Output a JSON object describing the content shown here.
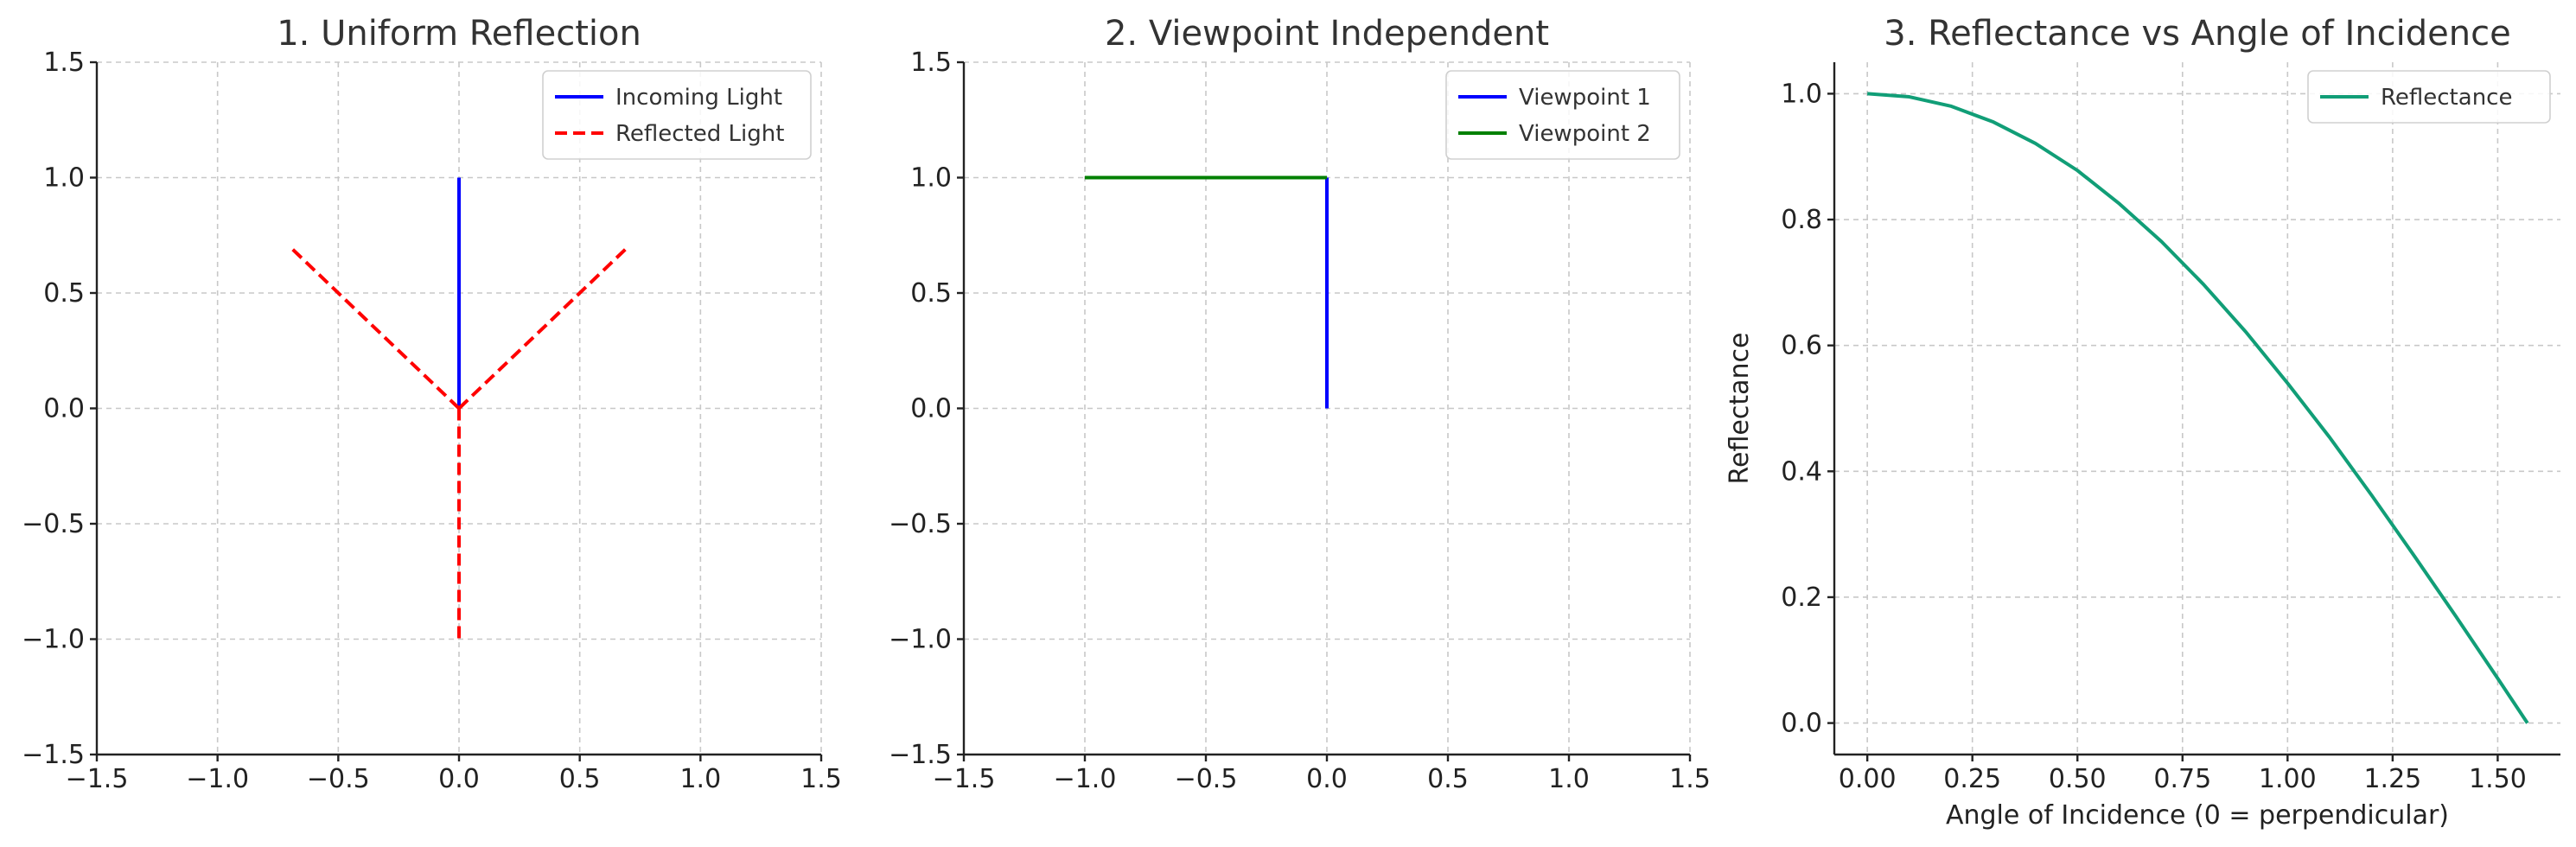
{
  "chart_data": [
    {
      "type": "line",
      "title": "1. Uniform Reflection",
      "xlabel": "",
      "ylabel": "",
      "xlim": [
        -1.5,
        1.5
      ],
      "ylim": [
        -1.5,
        1.5
      ],
      "xticks": [
        -1.5,
        -1.0,
        -0.5,
        0.0,
        0.5,
        1.0,
        1.5
      ],
      "yticks": [
        -1.5,
        -1.0,
        -0.5,
        0.0,
        0.5,
        1.0,
        1.5
      ],
      "xtick_labels": [
        "−1.5",
        "−1.0",
        "−0.5",
        "0.0",
        "0.5",
        "1.0",
        "1.5"
      ],
      "ytick_labels": [
        "−1.5",
        "−1.0",
        "−0.5",
        "0.0",
        "0.5",
        "1.0",
        "1.5"
      ],
      "grid": true,
      "legend": "top-right",
      "series": [
        {
          "name": "Incoming Light",
          "color": "#0000ff",
          "dash": "solid",
          "segments": [
            [
              [
                0,
                1.0
              ],
              [
                0,
                0
              ]
            ]
          ]
        },
        {
          "name": "Reflected Light",
          "color": "#ff0000",
          "dash": "dashed",
          "segments": [
            [
              [
                0,
                0
              ],
              [
                0.7,
                0.7
              ]
            ],
            [
              [
                0,
                0
              ],
              [
                -0.7,
                0.7
              ]
            ],
            [
              [
                0,
                0
              ],
              [
                0,
                -1.0
              ]
            ]
          ]
        }
      ]
    },
    {
      "type": "line",
      "title": "2. Viewpoint Independent",
      "xlabel": "",
      "ylabel": "",
      "xlim": [
        -1.5,
        1.5
      ],
      "ylim": [
        -1.5,
        1.5
      ],
      "xticks": [
        -1.5,
        -1.0,
        -0.5,
        0.0,
        0.5,
        1.0,
        1.5
      ],
      "yticks": [
        -1.5,
        -1.0,
        -0.5,
        0.0,
        0.5,
        1.0,
        1.5
      ],
      "xtick_labels": [
        "−1.5",
        "−1.0",
        "−0.5",
        "0.0",
        "0.5",
        "1.0",
        "1.5"
      ],
      "ytick_labels": [
        "−1.5",
        "−1.0",
        "−0.5",
        "0.0",
        "0.5",
        "1.0",
        "1.5"
      ],
      "grid": true,
      "legend": "top-right",
      "series": [
        {
          "name": "Viewpoint 1",
          "color": "#0000ff",
          "dash": "solid",
          "segments": [
            [
              [
                0,
                0
              ],
              [
                0,
                1.0
              ]
            ]
          ]
        },
        {
          "name": "Viewpoint 2",
          "color": "#008000",
          "dash": "solid",
          "segments": [
            [
              [
                0,
                1.0
              ],
              [
                -1.0,
                1.0
              ]
            ]
          ]
        }
      ]
    },
    {
      "type": "line",
      "title": "3. Reflectance vs Angle of Incidence",
      "xlabel": "Angle of Incidence (0 = perpendicular)",
      "ylabel": "Reflectance",
      "xlim": [
        -0.0785,
        1.6493
      ],
      "ylim": [
        -0.05,
        1.05
      ],
      "xticks": [
        0.0,
        0.25,
        0.5,
        0.75,
        1.0,
        1.25,
        1.5
      ],
      "yticks": [
        0.0,
        0.2,
        0.4,
        0.6,
        0.8,
        1.0
      ],
      "xtick_labels": [
        "0.00",
        "0.25",
        "0.50",
        "0.75",
        "1.00",
        "1.25",
        "1.50"
      ],
      "ytick_labels": [
        "0.0",
        "0.2",
        "0.4",
        "0.6",
        "0.8",
        "1.0"
      ],
      "grid": true,
      "legend": "top-right",
      "series": [
        {
          "name": "Reflectance",
          "color": "#119e77",
          "dash": "solid",
          "x": [
            0.0,
            0.1,
            0.2,
            0.3,
            0.4,
            0.5,
            0.6,
            0.7,
            0.8,
            0.9,
            1.0,
            1.1,
            1.2,
            1.3,
            1.4,
            1.5,
            1.5708
          ],
          "y": [
            1.0,
            0.995,
            0.98,
            0.955,
            0.921,
            0.878,
            0.825,
            0.765,
            0.697,
            0.622,
            0.54,
            0.454,
            0.362,
            0.267,
            0.17,
            0.071,
            0.0
          ]
        }
      ]
    }
  ]
}
